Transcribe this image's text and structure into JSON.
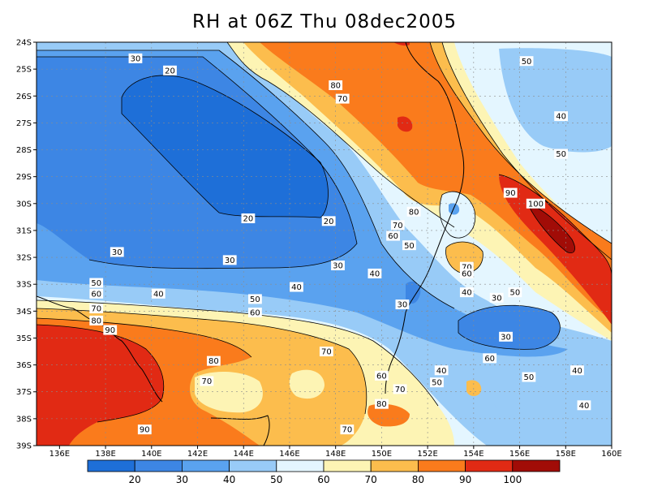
{
  "title": "RH at 06Z Thu 08dec2005",
  "map": {
    "lat_ticks": [
      "24S",
      "25S",
      "26S",
      "27S",
      "28S",
      "29S",
      "30S",
      "31S",
      "32S",
      "33S",
      "34S",
      "35S",
      "36S",
      "37S",
      "38S",
      "39S"
    ],
    "lon_ticks": [
      "136E",
      "138E",
      "140E",
      "142E",
      "144E",
      "146E",
      "148E",
      "150E",
      "152E",
      "154E",
      "156E",
      "158E",
      "160E"
    ],
    "contour_labels": [
      {
        "text": "30",
        "lon": 139.3,
        "lat": 24.6
      },
      {
        "text": "20",
        "lon": 140.8,
        "lat": 25.05
      },
      {
        "text": "80",
        "lon": 148.0,
        "lat": 25.6
      },
      {
        "text": "70",
        "lon": 148.3,
        "lat": 26.1
      },
      {
        "text": "50",
        "lon": 156.3,
        "lat": 24.7
      },
      {
        "text": "40",
        "lon": 157.8,
        "lat": 26.75
      },
      {
        "text": "50",
        "lon": 157.8,
        "lat": 28.15
      },
      {
        "text": "90",
        "lon": 155.6,
        "lat": 29.6
      },
      {
        "text": "100",
        "lon": 156.7,
        "lat": 30.0
      },
      {
        "text": "20",
        "lon": 144.2,
        "lat": 30.55
      },
      {
        "text": "20",
        "lon": 147.7,
        "lat": 30.65
      },
      {
        "text": "80",
        "lon": 151.4,
        "lat": 30.3
      },
      {
        "text": "70",
        "lon": 150.7,
        "lat": 30.8
      },
      {
        "text": "60",
        "lon": 150.5,
        "lat": 31.2
      },
      {
        "text": "50",
        "lon": 151.2,
        "lat": 31.55
      },
      {
        "text": "30",
        "lon": 138.5,
        "lat": 31.8
      },
      {
        "text": "30",
        "lon": 143.4,
        "lat": 32.1
      },
      {
        "text": "30",
        "lon": 148.1,
        "lat": 32.3
      },
      {
        "text": "70",
        "lon": 153.7,
        "lat": 32.35
      },
      {
        "text": "60",
        "lon": 153.7,
        "lat": 32.6
      },
      {
        "text": "40",
        "lon": 149.7,
        "lat": 32.6
      },
      {
        "text": "50",
        "lon": 137.6,
        "lat": 32.95
      },
      {
        "text": "40",
        "lon": 146.3,
        "lat": 33.1
      },
      {
        "text": "60",
        "lon": 137.6,
        "lat": 33.35
      },
      {
        "text": "40",
        "lon": 140.3,
        "lat": 33.35
      },
      {
        "text": "40",
        "lon": 153.7,
        "lat": 33.3
      },
      {
        "text": "30",
        "lon": 155.0,
        "lat": 33.5
      },
      {
        "text": "50",
        "lon": 155.8,
        "lat": 33.3
      },
      {
        "text": "50",
        "lon": 144.5,
        "lat": 33.55
      },
      {
        "text": "30",
        "lon": 150.9,
        "lat": 33.75
      },
      {
        "text": "70",
        "lon": 137.6,
        "lat": 33.9
      },
      {
        "text": "60",
        "lon": 144.5,
        "lat": 34.05
      },
      {
        "text": "80",
        "lon": 137.6,
        "lat": 34.35
      },
      {
        "text": "90",
        "lon": 138.2,
        "lat": 34.7
      },
      {
        "text": "30",
        "lon": 155.4,
        "lat": 34.95
      },
      {
        "text": "70",
        "lon": 147.6,
        "lat": 35.5
      },
      {
        "text": "80",
        "lon": 142.7,
        "lat": 35.85
      },
      {
        "text": "60",
        "lon": 154.7,
        "lat": 35.75
      },
      {
        "text": "40",
        "lon": 152.6,
        "lat": 36.2
      },
      {
        "text": "60",
        "lon": 150.0,
        "lat": 36.4
      },
      {
        "text": "50",
        "lon": 156.4,
        "lat": 36.45
      },
      {
        "text": "40",
        "lon": 158.5,
        "lat": 36.2
      },
      {
        "text": "50",
        "lon": 152.4,
        "lat": 36.65
      },
      {
        "text": "70",
        "lon": 142.4,
        "lat": 36.6
      },
      {
        "text": "70",
        "lon": 150.8,
        "lat": 36.9
      },
      {
        "text": "80",
        "lon": 150.0,
        "lat": 37.45
      },
      {
        "text": "40",
        "lon": 158.8,
        "lat": 37.5
      },
      {
        "text": "90",
        "lon": 139.7,
        "lat": 38.4
      },
      {
        "text": "70",
        "lon": 148.5,
        "lat": 38.4
      }
    ]
  },
  "colorbar": {
    "colors": [
      "#1e6fd8",
      "#3d86e4",
      "#5aa2ef",
      "#98cbf7",
      "#e4f6ff",
      "#fdf4b4",
      "#fcbd4d",
      "#fa7b1c",
      "#e12a14",
      "#a10c07"
    ],
    "labels": [
      "20",
      "30",
      "40",
      "50",
      "60",
      "70",
      "80",
      "90",
      "100"
    ]
  }
}
